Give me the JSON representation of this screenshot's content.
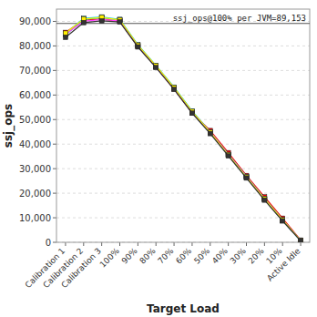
{
  "chart_data": {
    "type": "line",
    "x_label": "Target Load",
    "y_label": "ssj_ops",
    "categories": [
      "Calibration 1",
      "Calibration 2",
      "Calibration 3",
      "100%",
      "90%",
      "80%",
      "70%",
      "60%",
      "50%",
      "40%",
      "30%",
      "20%",
      "10%",
      "Active Idle"
    ],
    "series": [
      {
        "color": "#FF0000",
        "values": [
          85500,
          90500,
          91000,
          90000,
          79800,
          71500,
          62500,
          52800,
          45500,
          36500,
          27200,
          18500,
          9800,
          900
        ]
      },
      {
        "color": "#00CCFF",
        "values": [
          85000,
          91200,
          91800,
          90800,
          80500,
          72000,
          63200,
          53500,
          45000,
          35800,
          26800,
          17800,
          9200,
          700
        ]
      },
      {
        "color": "#00CCAA",
        "values": [
          84500,
          90800,
          91500,
          90500,
          80100,
          71800,
          62900,
          53200,
          44700,
          35500,
          26500,
          17500,
          8900,
          650
        ]
      },
      {
        "color": "#FF44FF",
        "values": [
          84800,
          90000,
          90800,
          90200,
          80000,
          71600,
          62700,
          53000,
          44900,
          35700,
          26700,
          17600,
          9000,
          720
        ]
      },
      {
        "color": "#FFEE00",
        "values": [
          85200,
          91000,
          91600,
          90600,
          80300,
          71900,
          63000,
          53300,
          44800,
          35600,
          26600,
          17700,
          9100,
          680
        ]
      },
      {
        "color": "#333333",
        "values": [
          83500,
          89500,
          90200,
          89800,
          79600,
          71200,
          62300,
          52600,
          44300,
          35200,
          26200,
          17200,
          8700,
          600
        ]
      }
    ],
    "marker": "square",
    "annotations": [
      {
        "text": "ssj_ops@100% per JVM=89,153",
        "y": 89153,
        "color": "#555555"
      }
    ],
    "ylim": [
      0,
      95000
    ],
    "yticks": [
      0,
      {
        "value": 10000,
        "label": "10,000"
      },
      {
        "value": 20000,
        "label": "20,000"
      },
      {
        "value": 30000,
        "label": "30,000"
      },
      {
        "value": 40000,
        "label": "40,000"
      },
      {
        "value": 50000,
        "label": "50,000"
      },
      {
        "value": 60000,
        "label": "60,000"
      },
      {
        "value": 70000,
        "label": "70,000"
      },
      {
        "value": 80000,
        "label": "80,000"
      },
      {
        "value": 90000,
        "label": "90,000"
      }
    ],
    "grid": true
  }
}
